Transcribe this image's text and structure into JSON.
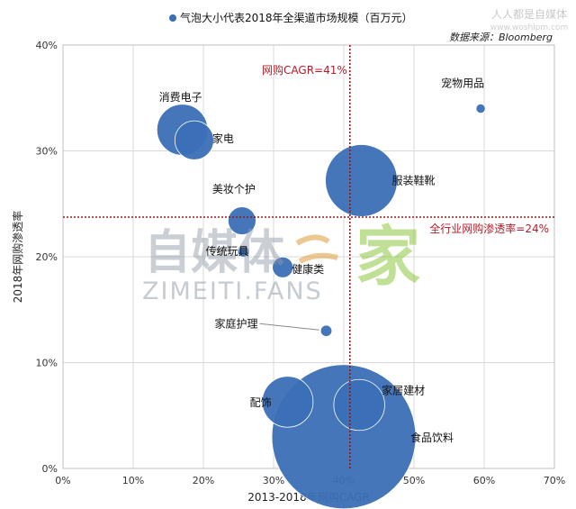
{
  "legend": {
    "label": "气泡大小代表2018年全渠道市场规模（百万元）",
    "color": "#3b6fb6"
  },
  "site": {
    "name": "人人都是自媒体",
    "url": "www.woshipm.com"
  },
  "source": "数据来源：Bloomberg",
  "watermark": {
    "brand": "自媒体",
    "glyph": "家",
    "fans": "ZIMEITI.FANS"
  },
  "chart_data": {
    "type": "scatter",
    "subtype": "bubble",
    "xlabel": "2013-2018年网购CAGR",
    "ylabel": "2018年网购渗透率",
    "xlim": [
      0,
      70
    ],
    "ylim": [
      0,
      40
    ],
    "x_ticks": [
      "0%",
      "10%",
      "20%",
      "30%",
      "40%",
      "50%",
      "60%",
      "70%"
    ],
    "y_ticks": [
      "0%",
      "10%",
      "20%",
      "30%",
      "40%"
    ],
    "grid": true,
    "legend_position": "top",
    "bubble_color": "#3b6fb6",
    "reference_lines": {
      "vertical": {
        "value": 41,
        "label": "网购CAGR=41%",
        "color": "#8b1a1a"
      },
      "horizontal": {
        "value": 24,
        "label": "全行业网购渗透率=24%",
        "color": "#8b1a1a"
      }
    },
    "points": [
      {
        "label": "消费电子",
        "x": 17.0,
        "y": 32.0,
        "size": 60
      },
      {
        "label": "家电",
        "x": 18.7,
        "y": 31.0,
        "size": 35
      },
      {
        "label": "宠物用品",
        "x": 59.5,
        "y": 34.0,
        "size": 2
      },
      {
        "label": "服装鞋靴",
        "x": 42.5,
        "y": 27.2,
        "size": 120
      },
      {
        "label": "美妆个护",
        "x": 25.5,
        "y": 23.4,
        "size": 18
      },
      {
        "label": "传统玩具",
        "x": 25.7,
        "y": 20.5,
        "size": 3
      },
      {
        "label": "健康类",
        "x": 31.3,
        "y": 19.0,
        "size": 10
      },
      {
        "label": "家庭护理",
        "x": 37.5,
        "y": 13.0,
        "size": 3
      },
      {
        "label": "配饰",
        "x": 32.0,
        "y": 6.3,
        "size": 60
      },
      {
        "label": "家居建材",
        "x": 42.2,
        "y": 6.0,
        "size": 60
      },
      {
        "label": "食品饮料",
        "x": 40.0,
        "y": 3.0,
        "size": 480
      }
    ]
  }
}
